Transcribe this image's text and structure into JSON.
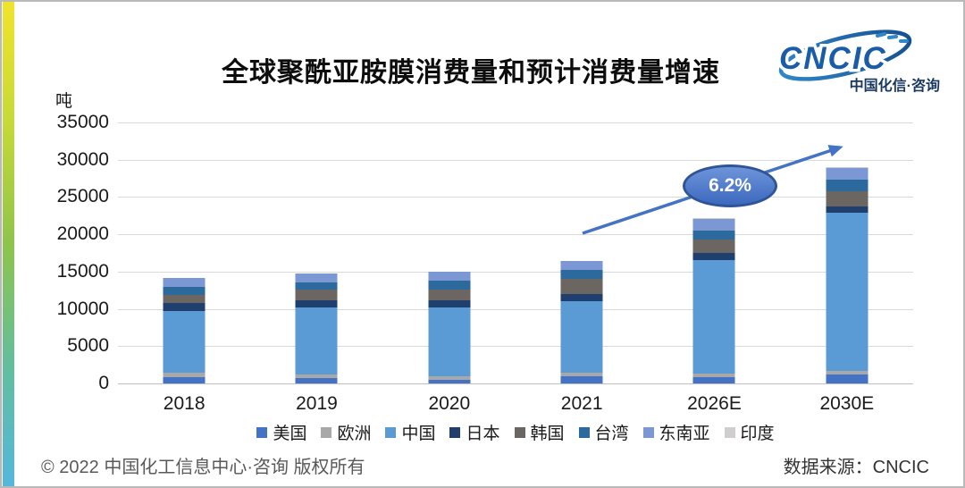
{
  "page": {
    "title": "全球聚酰亚胺膜消费量和预计消费量增速",
    "unit_label": "吨",
    "footer_left": "© 2022 中国化工信息中心·咨询 版权所有",
    "footer_right": "数据来源：CNCIC"
  },
  "logo": {
    "name": "CNCIC",
    "subtitle": "中国化信·咨询",
    "text_color": "#1A5CA7",
    "subtitle_color": "#17375E",
    "ring_color_left": "#2F86C8",
    "ring_color_right": "#15518F"
  },
  "accent_strip": {
    "colors": [
      "#F0E42B",
      "#C6D938",
      "#8EC44B",
      "#63BE9D",
      "#55B7DC"
    ]
  },
  "annotation": {
    "text": "6.2%",
    "fill_top": "#6E95DA",
    "fill_bottom": "#3C69BE",
    "border": "#2F5597",
    "arrow_color": "#4472C4",
    "arrow_from": [
      650,
      259
    ],
    "arrow_to": [
      938,
      163
    ]
  },
  "chart_data": {
    "type": "bar",
    "stacked": true,
    "title": "全球聚酰亚胺膜消费量和预计消费量增速",
    "xlabel": "",
    "ylabel": "吨",
    "ylim": [
      0,
      35000
    ],
    "ytick_step": 5000,
    "yticks": [
      0,
      5000,
      10000,
      15000,
      20000,
      25000,
      30000,
      35000
    ],
    "grid": true,
    "legend_position": "bottom",
    "categories": [
      "2018",
      "2019",
      "2020",
      "2021",
      "2026E",
      "2030E"
    ],
    "series": [
      {
        "name": "美国",
        "color": "#4472C4",
        "values": [
          900,
          700,
          500,
          950,
          850,
          1250
        ]
      },
      {
        "name": "欧洲",
        "color": "#A8A8A8",
        "values": [
          600,
          500,
          500,
          450,
          450,
          450
        ]
      },
      {
        "name": "中国",
        "color": "#5B9BD5",
        "values": [
          8200,
          9000,
          9200,
          9650,
          15200,
          21200
        ]
      },
      {
        "name": "日本",
        "color": "#1F3F6E",
        "values": [
          1100,
          900,
          950,
          950,
          950,
          800
        ]
      },
      {
        "name": "韩国",
        "color": "#6B6661",
        "values": [
          1100,
          1450,
          1450,
          2000,
          1800,
          2100
        ]
      },
      {
        "name": "台湾",
        "color": "#2C699C",
        "values": [
          1000,
          1000,
          1200,
          1200,
          1250,
          1500
        ]
      },
      {
        "name": "东南亚",
        "color": "#7B97D4",
        "values": [
          1200,
          1200,
          1200,
          1200,
          1600,
          1600
        ]
      },
      {
        "name": "印度",
        "color": "#CFCDCD",
        "values": [
          50,
          50,
          50,
          50,
          100,
          100
        ]
      }
    ],
    "totals_approx": [
      14150,
      14800,
      15050,
      16450,
      22200,
      29000
    ],
    "annotation_text": "6.2%"
  }
}
